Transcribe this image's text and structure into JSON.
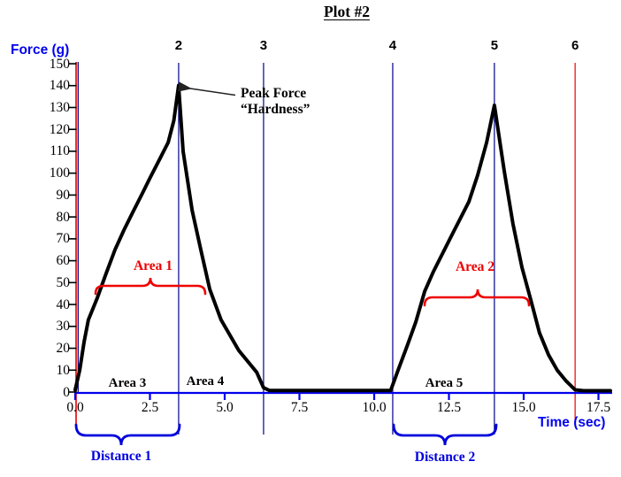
{
  "title": "Plot #2",
  "y_axis": {
    "label": "Force (g)",
    "ticks": [
      "150",
      "140",
      "130",
      "120",
      "110",
      "100",
      "90",
      "80",
      "70",
      "60",
      "50",
      "40",
      "30",
      "20",
      "10",
      "0"
    ]
  },
  "x_axis": {
    "label": "Time (sec)",
    "ticks": [
      "0.0",
      "2.5",
      "5.0",
      "7.5",
      "10.0",
      "12.5",
      "15.0",
      "17.5"
    ]
  },
  "annotations": {
    "peak_line1": "Peak Force",
    "peak_line2": "“Hardness”",
    "area1": "Area 1",
    "area2": "Area 2",
    "area3": "Area 3",
    "area4": "Area 4",
    "area5": "Area 5",
    "distance1": "Distance 1",
    "distance2": "Distance 2"
  },
  "colors": {
    "curve": "#000000",
    "axis_x_blue": "#0000ee",
    "axis_y_red": "#e30000",
    "event_line_navy": "#00008b",
    "event_line_red": "#ee0000",
    "area_annotation_red": "#ee0000",
    "distance_annotation_blue": "#0000dd",
    "axis_label_blue": "#0000f0",
    "arrow": "#222222"
  },
  "chart_data": {
    "type": "line",
    "title": "Plot #2",
    "xlabel": "Time (sec)",
    "ylabel": "Force (g)",
    "xlim": [
      0,
      17.5
    ],
    "ylim": [
      0,
      150
    ],
    "x_tick_step": 2.5,
    "y_tick_step": 10,
    "grid": false,
    "series": [
      {
        "name": "Force",
        "points": [
          [
            0,
            1
          ],
          [
            0.15,
            10
          ],
          [
            0.3,
            23
          ],
          [
            0.44,
            33
          ],
          [
            0.74,
            43
          ],
          [
            1.03,
            54
          ],
          [
            1.33,
            65
          ],
          [
            1.63,
            74
          ],
          [
            1.92,
            82
          ],
          [
            2.22,
            90
          ],
          [
            2.51,
            98
          ],
          [
            2.81,
            106
          ],
          [
            3.11,
            114
          ],
          [
            3.3,
            124
          ],
          [
            3.46,
            140
          ],
          [
            3.61,
            110
          ],
          [
            3.91,
            83
          ],
          [
            4.2,
            65
          ],
          [
            4.5,
            47
          ],
          [
            4.88,
            33
          ],
          [
            5.47,
            19
          ],
          [
            6.07,
            9
          ],
          [
            6.3,
            2
          ],
          [
            6.5,
            0.7
          ],
          [
            7,
            0.7
          ],
          [
            8,
            0.7
          ],
          [
            9,
            0.7
          ],
          [
            10,
            0.7
          ],
          [
            10.55,
            0.7
          ],
          [
            10.8,
            10
          ],
          [
            11.1,
            21
          ],
          [
            11.39,
            32
          ],
          [
            11.69,
            46
          ],
          [
            11.98,
            55
          ],
          [
            12.57,
            71
          ],
          [
            13.17,
            87
          ],
          [
            13.46,
            99
          ],
          [
            13.76,
            114
          ],
          [
            14.02,
            131
          ],
          [
            14.35,
            101
          ],
          [
            14.64,
            77
          ],
          [
            14.94,
            57
          ],
          [
            15.24,
            42
          ],
          [
            15.53,
            27
          ],
          [
            15.83,
            17
          ],
          [
            16.12,
            10
          ],
          [
            16.42,
            5
          ],
          [
            16.72,
            1
          ],
          [
            17.0,
            0.6
          ],
          [
            17.5,
            0.6
          ],
          [
            17.9,
            0.6
          ]
        ]
      }
    ],
    "event_markers": [
      {
        "label": "2",
        "t": 3.46,
        "highlight": false
      },
      {
        "label": "3",
        "t": 6.3,
        "highlight": false
      },
      {
        "label": "4",
        "t": 10.62,
        "highlight": false
      },
      {
        "label": "5",
        "t": 14.02,
        "highlight": false
      },
      {
        "label": "6",
        "t": 16.72,
        "highlight": true
      }
    ],
    "peaks": [
      {
        "t": 3.46,
        "force": 140,
        "note": "Peak Force “Hardness”"
      },
      {
        "t": 14.02,
        "force": 131
      }
    ],
    "area_spans": [
      {
        "name": "Area 1",
        "t_from": 0.68,
        "t_to": 4.35
      },
      {
        "name": "Area 2",
        "t_from": 11.69,
        "t_to": 15.18
      },
      {
        "name": "Distance 1",
        "t_from": 0.0,
        "t_to": 3.46
      },
      {
        "name": "Distance 2",
        "t_from": 10.62,
        "t_to": 14.02
      }
    ]
  }
}
